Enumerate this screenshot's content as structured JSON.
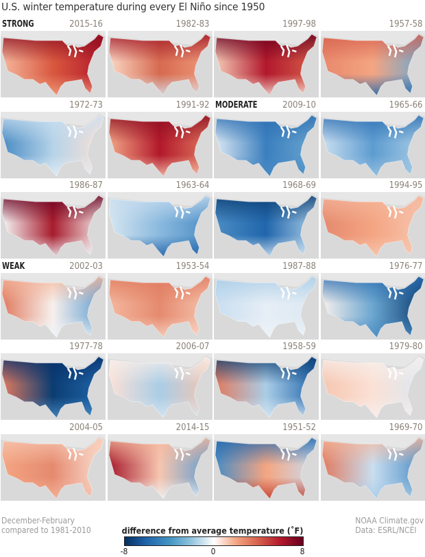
{
  "title": "U.S. winter temperature during every El Niño since 1950",
  "maps": [
    {
      "year": "2015-16",
      "category": "STRONG",
      "colors": {
        "west": "#f4b79d",
        "center": "#d9583f",
        "east": "#b2182b",
        "north": "#8b0d1f",
        "south": "#f0a080"
      }
    },
    {
      "year": "1982-83",
      "colors": {
        "west": "#fbd7c4",
        "center": "#d66a50",
        "east": "#f09a7c",
        "north": "#a01525",
        "south": "#d6e6f1"
      }
    },
    {
      "year": "1997-98",
      "colors": {
        "west": "#f5cbb7",
        "center": "#b2182b",
        "east": "#d6604d",
        "north": "#67001f",
        "south": "#f7e1d5"
      }
    },
    {
      "year": "1957-58",
      "colors": {
        "west": "#e8886c",
        "center": "#f4a582",
        "east": "#6ba6d0",
        "north": "#d6604d",
        "south": "#2166ac"
      }
    },
    {
      "year": "1972-73",
      "colors": {
        "west": "#4a8cc4",
        "center": "#b5d3e8",
        "east": "#fbe1d6",
        "north": "#c9def0",
        "south": "#e6eef6"
      }
    },
    {
      "year": "1991-92",
      "colors": {
        "west": "#f2a586",
        "center": "#b2182b",
        "east": "#e07a5f",
        "north": "#8b0d1f",
        "south": "#f6c6b0"
      }
    },
    {
      "year": "2009-10",
      "category": "MODERATE",
      "colors": {
        "west": "#dbe8f3",
        "center": "#3b7fbf",
        "east": "#6ba6d0",
        "north": "#2d6fb2",
        "south": "#4a8cc4"
      }
    },
    {
      "year": "1965-66",
      "colors": {
        "west": "#c9def0",
        "center": "#5d9cd0",
        "east": "#aacde6",
        "north": "#2d6fb2",
        "south": "#9cc4e2"
      }
    },
    {
      "year": "1986-87",
      "colors": {
        "west": "#f7f7f7",
        "center": "#a71c2d",
        "east": "#f7f2ef",
        "north": "#67001f",
        "south": "#eef3f8"
      }
    },
    {
      "year": "1963-64",
      "colors": {
        "west": "#d6e6f1",
        "center": "#8ab9de",
        "east": "#4a8cc4",
        "north": "#c9def0",
        "south": "#1f5fa6"
      }
    },
    {
      "year": "1968-69",
      "colors": {
        "west": "#4a8cc4",
        "center": "#2166ac",
        "east": "#aacde6",
        "north": "#0b3d72",
        "south": "#d6e6f1"
      }
    },
    {
      "year": "1994-95",
      "colors": {
        "west": "#e58a6f",
        "center": "#f4a582",
        "east": "#f6c6b0",
        "north": "#f4b79d",
        "south": "#f8c9b4"
      }
    },
    {
      "year": "2002-03",
      "category": "WEAK",
      "colors": {
        "west": "#e07a5f",
        "center": "#f7f0ec",
        "east": "#5d9cd0",
        "north": "#f4b79d",
        "south": "#eef3f8"
      }
    },
    {
      "year": "1953-54",
      "colors": {
        "west": "#f4b79d",
        "center": "#e58a6f",
        "east": "#f6c6b0",
        "north": "#e07a5f",
        "south": "#f8d7c7"
      }
    },
    {
      "year": "1987-88",
      "colors": {
        "west": "#c9def0",
        "center": "#e6eef6",
        "east": "#dbe8f3",
        "north": "#aacde6",
        "south": "#eef3f8"
      }
    },
    {
      "year": "1976-77",
      "colors": {
        "west": "#f7f0ec",
        "center": "#6ba6d0",
        "east": "#0b3d72",
        "north": "#2d6fb2",
        "south": "#4a8cc4"
      }
    },
    {
      "year": "1977-78",
      "colors": {
        "west": "#e07a5f",
        "center": "#0b3d72",
        "east": "#2166ac",
        "north": "#08306b",
        "south": "#4a8cc4"
      }
    },
    {
      "year": "2006-07",
      "colors": {
        "west": "#fbe1d6",
        "center": "#aacde6",
        "east": "#f6c6b0",
        "north": "#f7f0ec",
        "south": "#dbe8f3"
      }
    },
    {
      "year": "1958-59",
      "colors": {
        "west": "#e07a5f",
        "center": "#aacde6",
        "east": "#2166ac",
        "north": "#0b3d72",
        "south": "#dbe8f3"
      }
    },
    {
      "year": "1979-80",
      "colors": {
        "west": "#f6c6b0",
        "center": "#fbe1d6",
        "east": "#dbe8f3",
        "north": "#f7f0ec",
        "south": "#f7f0ec"
      }
    },
    {
      "year": "2004-05",
      "colors": {
        "west": "#f4a582",
        "center": "#e58a6f",
        "east": "#fbe1d6",
        "north": "#f6c6b0",
        "south": "#f4b79d"
      }
    },
    {
      "year": "2014-15",
      "colors": {
        "west": "#a71c2d",
        "center": "#f6c6b0",
        "east": "#5d9cd0",
        "north": "#f4b79d",
        "south": "#eef3f8"
      }
    },
    {
      "year": "1951-52",
      "colors": {
        "west": "#4a8cc4",
        "center": "#f4a582",
        "east": "#c9def0",
        "north": "#2166ac",
        "south": "#c0392b"
      }
    },
    {
      "year": "1969-70",
      "colors": {
        "west": "#e07a5f",
        "center": "#c9def0",
        "east": "#4a8cc4",
        "north": "#f4b79d",
        "south": "#aacde6"
      }
    }
  ],
  "footer": {
    "left": "December-February\ncompared to 1981-2010",
    "right": "NOAA Climate.gov\nData: ESRL/NCEI"
  },
  "legend": {
    "title": "difference from average temperature (˚F)",
    "ticks": [
      "-8",
      "0",
      "8"
    ],
    "range": [
      -8,
      8
    ],
    "colors": [
      "#053061",
      "#2166ac",
      "#4393c3",
      "#92c5de",
      "#ffffff",
      "#f4a582",
      "#d6604d",
      "#b2182b",
      "#67001f"
    ]
  }
}
